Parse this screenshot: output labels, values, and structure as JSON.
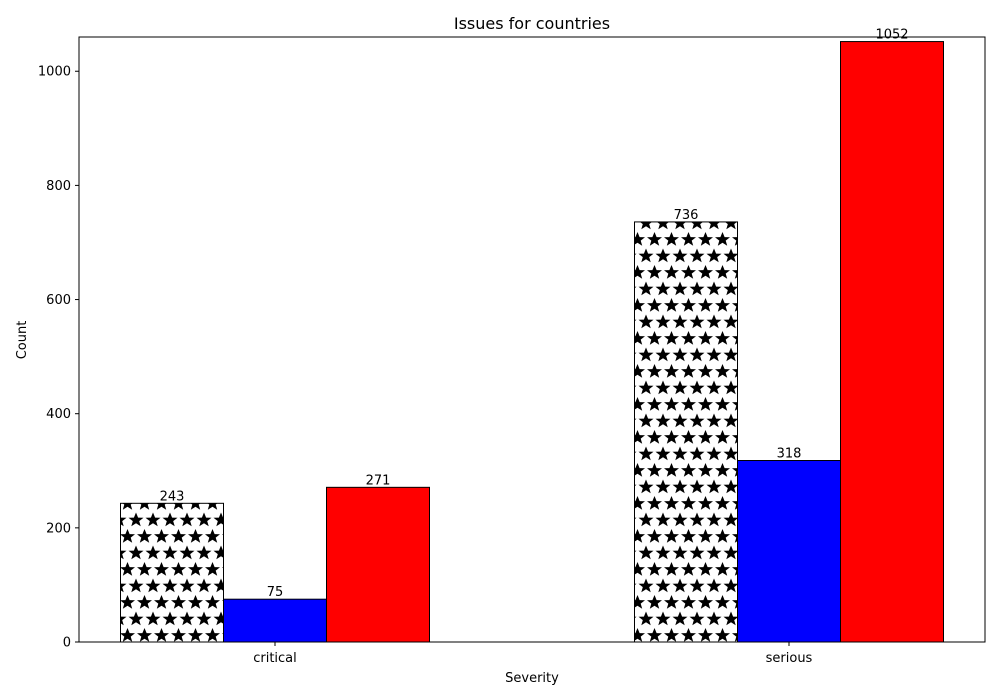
{
  "chart_data": {
    "type": "bar",
    "title": "Issues for countries",
    "xlabel": "Severity",
    "ylabel": "Count",
    "categories": [
      "critical",
      "serious"
    ],
    "series": [
      {
        "values": [
          243,
          736
        ],
        "color": "#ffffff",
        "pattern": "stars"
      },
      {
        "values": [
          75,
          318
        ],
        "color": "#0000ff",
        "pattern": "none"
      },
      {
        "values": [
          271,
          1052
        ],
        "color": "#ff0000",
        "pattern": "none"
      }
    ],
    "ylim": [
      0,
      1060
    ],
    "yticks": [
      0,
      200,
      400,
      600,
      800,
      1000
    ],
    "grid": false,
    "legend": "none",
    "data_labels": true
  }
}
